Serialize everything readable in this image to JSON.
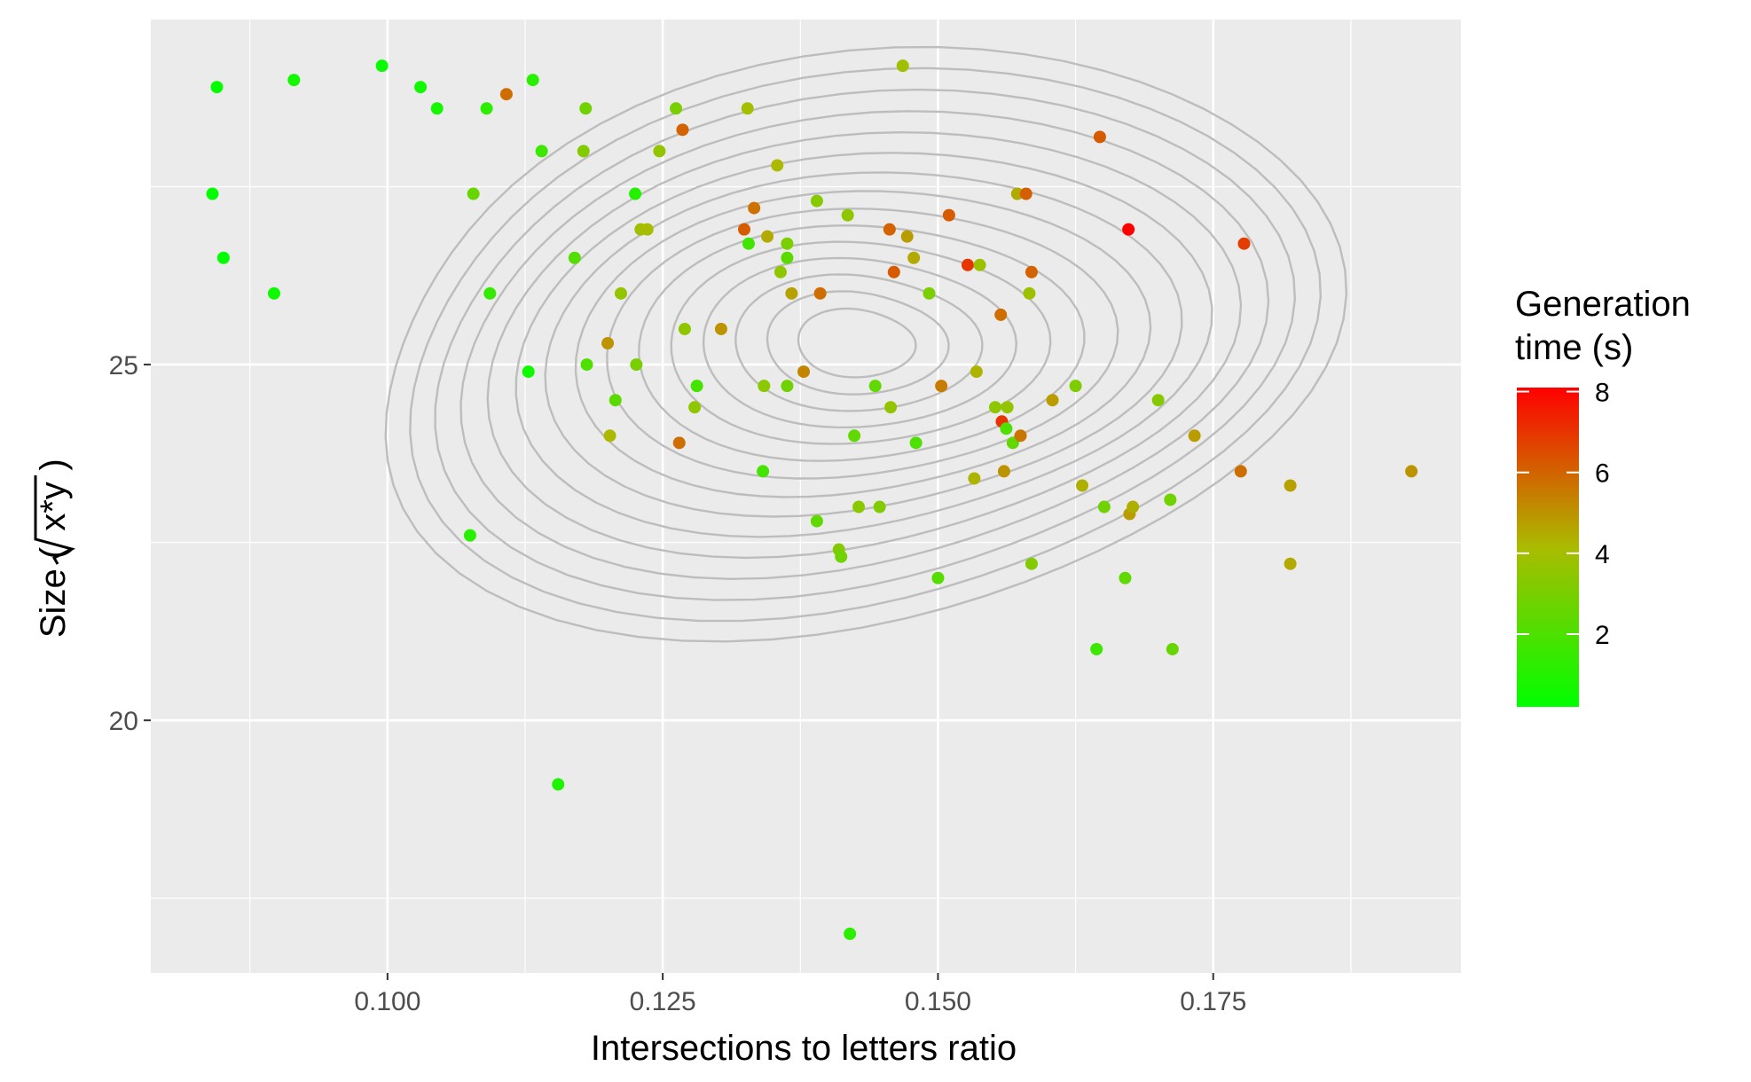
{
  "chart_data": {
    "type": "scatter",
    "title": "",
    "xlabel": "Intersections to letters ratio",
    "ylabel_prefix": "Size (",
    "ylabel_radicand": "x*y",
    "ylabel_suffix": ")",
    "xlim": [
      0.0785,
      0.1975
    ],
    "ylim": [
      16.45,
      29.85
    ],
    "x_ticks": [
      0.1,
      0.125,
      0.15,
      0.175
    ],
    "x_tick_labels": [
      "0.100",
      "0.125",
      "0.150",
      "0.175"
    ],
    "y_ticks": [
      20,
      25
    ],
    "y_tick_labels": [
      "20",
      "25"
    ],
    "grid": true,
    "panel_background": "#ebebeb",
    "grid_color": "#ffffff",
    "contour_color": "#bdbdbd",
    "legend": {
      "title_line1": "Generation",
      "title_line2": "time (s)",
      "placement": "right",
      "min": 0.2,
      "max": 8.1,
      "ticks": [
        2,
        4,
        6,
        8
      ],
      "tick_labels": [
        "2",
        "4",
        "6",
        "8"
      ],
      "low_color": "#00ff00",
      "high_color": "#ff0000"
    },
    "contour_center": [
      0.1425,
      25.3
    ],
    "contour_levels": 15,
    "points": [
      [
        0.0841,
        27.4,
        0.3
      ],
      [
        0.0845,
        28.9,
        0.3
      ],
      [
        0.0851,
        26.5,
        0.3
      ],
      [
        0.0897,
        26.0,
        0.5
      ],
      [
        0.0915,
        29.0,
        0.6
      ],
      [
        0.0995,
        29.2,
        0.4
      ],
      [
        0.103,
        28.9,
        0.6
      ],
      [
        0.1045,
        28.6,
        0.7
      ],
      [
        0.1078,
        27.4,
        2.6
      ],
      [
        0.1075,
        22.6,
        1.1
      ],
      [
        0.109,
        28.6,
        1.2
      ],
      [
        0.1093,
        26.0,
        1.4
      ],
      [
        0.1108,
        28.8,
        5.8
      ],
      [
        0.1128,
        24.9,
        0.5
      ],
      [
        0.1132,
        29.0,
        1.1
      ],
      [
        0.1155,
        19.1,
        0.9
      ],
      [
        0.114,
        28.0,
        1.6
      ],
      [
        0.117,
        26.5,
        2.2
      ],
      [
        0.1178,
        28.0,
        3.2
      ],
      [
        0.118,
        28.6,
        2.8
      ],
      [
        0.1181,
        25.0,
        2.0
      ],
      [
        0.12,
        25.3,
        5.0
      ],
      [
        0.1202,
        24.0,
        4.2
      ],
      [
        0.1207,
        24.5,
        2.3
      ],
      [
        0.1212,
        26.0,
        3.6
      ],
      [
        0.1225,
        27.4,
        1.0
      ],
      [
        0.1226,
        25.0,
        3.0
      ],
      [
        0.123,
        26.9,
        3.9
      ],
      [
        0.1236,
        26.9,
        4.1
      ],
      [
        0.1247,
        28.0,
        3.6
      ],
      [
        0.1262,
        28.6,
        3.0
      ],
      [
        0.1265,
        23.9,
        5.8
      ],
      [
        0.1268,
        28.3,
        6.0
      ],
      [
        0.127,
        25.5,
        3.5
      ],
      [
        0.1279,
        24.4,
        3.5
      ],
      [
        0.1281,
        24.7,
        1.8
      ],
      [
        0.1303,
        25.5,
        5.0
      ],
      [
        0.1324,
        26.9,
        6.2
      ],
      [
        0.1327,
        28.6,
        4.0
      ],
      [
        0.1328,
        26.7,
        1.7
      ],
      [
        0.1333,
        27.2,
        5.7
      ],
      [
        0.1341,
        23.5,
        1.8
      ],
      [
        0.1342,
        24.7,
        3.4
      ],
      [
        0.1345,
        26.8,
        4.5
      ],
      [
        0.1354,
        27.8,
        4.2
      ],
      [
        0.1357,
        26.3,
        3.5
      ],
      [
        0.1363,
        24.7,
        2.8
      ],
      [
        0.1363,
        26.7,
        3.0
      ],
      [
        0.1363,
        26.5,
        2.3
      ],
      [
        0.1367,
        26.0,
        4.7
      ],
      [
        0.1378,
        24.9,
        5.3
      ],
      [
        0.139,
        27.3,
        3.3
      ],
      [
        0.139,
        22.8,
        2.4
      ],
      [
        0.1393,
        26.0,
        5.8
      ],
      [
        0.141,
        22.4,
        3.2
      ],
      [
        0.1412,
        22.3,
        2.8
      ],
      [
        0.1418,
        27.1,
        3.5
      ],
      [
        0.142,
        17.0,
        1.2
      ],
      [
        0.1424,
        24.0,
        2.4
      ],
      [
        0.1428,
        23.0,
        3.4
      ],
      [
        0.1443,
        24.7,
        2.4
      ],
      [
        0.1447,
        23.0,
        3.2
      ],
      [
        0.1456,
        26.9,
        6.0
      ],
      [
        0.1457,
        24.4,
        3.6
      ],
      [
        0.146,
        26.3,
        6.2
      ],
      [
        0.1468,
        29.2,
        3.9
      ],
      [
        0.1472,
        26.8,
        4.8
      ],
      [
        0.1478,
        26.5,
        4.5
      ],
      [
        0.148,
        23.9,
        2.0
      ],
      [
        0.1492,
        26.0,
        3.0
      ],
      [
        0.15,
        22.0,
        2.2
      ],
      [
        0.1503,
        24.7,
        5.5
      ],
      [
        0.151,
        27.1,
        6.2
      ],
      [
        0.1527,
        26.4,
        7.0
      ],
      [
        0.1533,
        23.4,
        4.3
      ],
      [
        0.1535,
        24.9,
        4.3
      ],
      [
        0.1538,
        26.4,
        3.8
      ],
      [
        0.1552,
        24.4,
        3.5
      ],
      [
        0.1557,
        25.7,
        5.8
      ],
      [
        0.1558,
        24.2,
        7.0
      ],
      [
        0.156,
        23.5,
        5.0
      ],
      [
        0.1562,
        24.1,
        2.0
      ],
      [
        0.1563,
        24.4,
        3.6
      ],
      [
        0.1568,
        23.9,
        2.5
      ],
      [
        0.1572,
        27.4,
        4.5
      ],
      [
        0.1575,
        24.0,
        5.6
      ],
      [
        0.158,
        27.4,
        6.1
      ],
      [
        0.1583,
        26.0,
        3.8
      ],
      [
        0.1585,
        22.2,
        3.2
      ],
      [
        0.1585,
        26.3,
        6.0
      ],
      [
        0.1604,
        24.5,
        4.8
      ],
      [
        0.1625,
        24.7,
        3.1
      ],
      [
        0.1631,
        23.3,
        4.4
      ],
      [
        0.1647,
        28.2,
        6.2
      ],
      [
        0.1644,
        21.0,
        1.6
      ],
      [
        0.1651,
        23.0,
        2.8
      ],
      [
        0.1673,
        26.9,
        8.1
      ],
      [
        0.167,
        22.0,
        2.4
      ],
      [
        0.1674,
        22.9,
        4.8
      ],
      [
        0.1677,
        23.0,
        4.4
      ],
      [
        0.17,
        24.5,
        3.3
      ],
      [
        0.1711,
        23.1,
        2.8
      ],
      [
        0.1713,
        21.0,
        2.6
      ],
      [
        0.1733,
        24.0,
        4.8
      ],
      [
        0.1778,
        26.7,
        6.8
      ],
      [
        0.1775,
        23.5,
        5.8
      ],
      [
        0.182,
        23.3,
        4.7
      ],
      [
        0.182,
        22.2,
        4.5
      ],
      [
        0.193,
        23.5,
        5.0
      ]
    ]
  }
}
